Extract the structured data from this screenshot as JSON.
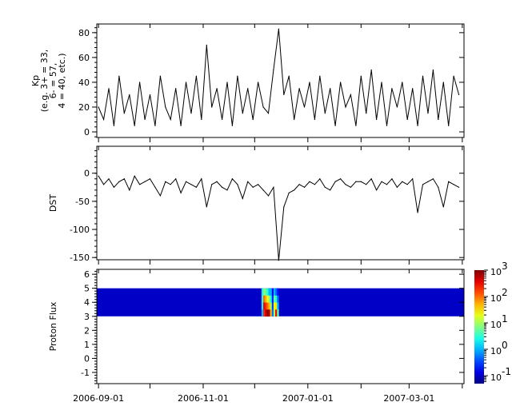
{
  "chart_data": [
    {
      "type": "line",
      "ylabel": [
        "Kp",
        "(e.g. 3+ = 33,",
        "6- = 57,",
        "4 = 40, etc.)"
      ],
      "ylim": [
        -4.5,
        87
      ],
      "yticks": [
        0,
        20,
        40,
        60,
        80
      ],
      "series": [
        {
          "values": [
            20,
            10,
            35,
            5,
            45,
            15,
            30,
            5,
            40,
            10,
            30,
            5,
            45,
            20,
            10,
            35,
            5,
            40,
            15,
            45,
            10,
            70,
            20,
            35,
            10,
            40,
            5,
            45,
            15,
            35,
            10,
            40,
            20,
            15,
            50,
            83,
            30,
            45,
            10,
            35,
            20,
            40,
            10,
            45,
            15,
            35,
            5,
            40,
            20,
            30,
            5,
            45,
            15,
            50,
            10,
            40,
            5,
            35,
            20,
            40,
            10,
            35,
            5,
            45,
            15,
            50,
            10,
            40,
            5,
            45,
            30
          ]
        }
      ]
    },
    {
      "type": "line",
      "ylabel": "DST",
      "ylim": [
        -154,
        48
      ],
      "yticks": [
        0,
        -50,
        -100,
        -150
      ],
      "series": [
        {
          "values": [
            -5,
            -20,
            -10,
            -25,
            -15,
            -10,
            -30,
            -5,
            -20,
            -15,
            -10,
            -25,
            -40,
            -15,
            -20,
            -10,
            -35,
            -15,
            -20,
            -25,
            -10,
            -60,
            -20,
            -15,
            -25,
            -30,
            -10,
            -20,
            -45,
            -15,
            -25,
            -20,
            -30,
            -40,
            -25,
            -155,
            -60,
            -35,
            -30,
            -20,
            -25,
            -15,
            -20,
            -10,
            -25,
            -30,
            -15,
            -10,
            -20,
            -25,
            -15,
            -15,
            -20,
            -10,
            -30,
            -15,
            -20,
            -10,
            -25,
            -15,
            -20,
            -10,
            -70,
            -20,
            -15,
            -10,
            -25,
            -60,
            -15,
            -20,
            -25
          ]
        }
      ]
    },
    {
      "type": "heatmap",
      "ylabel": "Proton Flux",
      "ylim": [
        -1.8,
        6.35
      ],
      "yticks": [
        -1,
        0,
        1,
        2,
        3,
        4,
        5,
        6
      ],
      "band_y": [
        3,
        5
      ],
      "l_bins": [
        3.25,
        3.75,
        4.25,
        4.75
      ],
      "background_value": 0.1,
      "event_columns": [
        {
          "date": "2006-12-05",
          "values": [
            1,
            2,
            3,
            2
          ]
        },
        {
          "date": "2006-12-06",
          "values": [
            200,
            300,
            100,
            10
          ]
        },
        {
          "date": "2006-12-07",
          "values": [
            500,
            200,
            50,
            5
          ]
        },
        {
          "date": "2006-12-08",
          "values": [
            800,
            100,
            20,
            3
          ]
        },
        {
          "date": "2006-12-09",
          "values": [
            600,
            50,
            10,
            1
          ]
        },
        {
          "date": "2006-12-10",
          "values": [
            50,
            10,
            2,
            1
          ]
        },
        {
          "date": "2006-12-11",
          "values": [
            0.5,
            0.3,
            0.2,
            0.15
          ]
        },
        {
          "date": "2006-12-12",
          "values": [
            10,
            20,
            5,
            1
          ]
        },
        {
          "date": "2006-12-13",
          "values": [
            300,
            30,
            3,
            0.5
          ]
        },
        {
          "date": "2006-12-14",
          "values": [
            5,
            1,
            0.5,
            0.2
          ]
        }
      ],
      "colorbar": {
        "scale": "log",
        "range": [
          0.05,
          1000
        ],
        "tick_labels": [
          {
            "base": "10",
            "exp": "3"
          },
          {
            "base": "10",
            "exp": "2"
          },
          {
            "base": "10",
            "exp": "1"
          },
          {
            "base": "10",
            "exp": "0"
          },
          {
            "base": "10",
            "exp": "-1"
          }
        ],
        "tick_values": [
          1000,
          100,
          10,
          1,
          0.1
        ],
        "colormap": "jet"
      }
    }
  ],
  "x_axis": {
    "dates": [
      "2006-09-01",
      "2006-09-04",
      "2006-09-07",
      "2006-09-10",
      "2006-09-13",
      "2006-09-16",
      "2006-09-19",
      "2006-09-22",
      "2006-09-25",
      "2006-09-28",
      "2006-10-01",
      "2006-10-04",
      "2006-10-07",
      "2006-10-10",
      "2006-10-13",
      "2006-10-16",
      "2006-10-19",
      "2006-10-22",
      "2006-10-25",
      "2006-10-28",
      "2006-10-31",
      "2006-11-03",
      "2006-11-06",
      "2006-11-09",
      "2006-11-12",
      "2006-11-15",
      "2006-11-18",
      "2006-11-21",
      "2006-11-24",
      "2006-11-27",
      "2006-11-30",
      "2006-12-03",
      "2006-12-06",
      "2006-12-09",
      "2006-12-12",
      "2006-12-15",
      "2006-12-18",
      "2006-12-21",
      "2006-12-24",
      "2006-12-27",
      "2006-12-30",
      "2007-01-02",
      "2007-01-05",
      "2007-01-08",
      "2007-01-11",
      "2007-01-14",
      "2007-01-17",
      "2007-01-20",
      "2007-01-23",
      "2007-01-26",
      "2007-01-29",
      "2007-02-01",
      "2007-02-04",
      "2007-02-07",
      "2007-02-10",
      "2007-02-13",
      "2007-02-16",
      "2007-02-19",
      "2007-02-22",
      "2007-02-25",
      "2007-02-28",
      "2007-03-03",
      "2007-03-06",
      "2007-03-09",
      "2007-03-12",
      "2007-03-15",
      "2007-03-18",
      "2007-03-21",
      "2007-03-24",
      "2007-03-27",
      "2007-03-30"
    ],
    "range": [
      "2006-08-31",
      "2007-04-02"
    ],
    "tick_labels": [
      "2006-09-01",
      "2006-11-01",
      "2007-01-01",
      "2007-03-01"
    ],
    "minor_ticks": [
      "2006-10-01",
      "2006-12-01",
      "2007-02-01",
      "2007-04-01"
    ]
  }
}
